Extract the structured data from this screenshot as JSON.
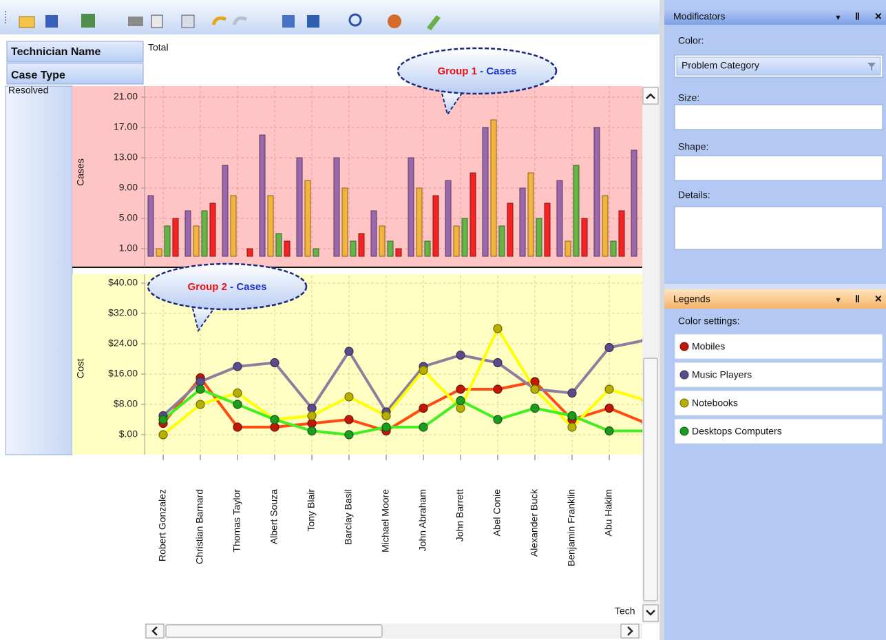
{
  "pivot": {
    "row_header": "Technician Name",
    "column_header": "Case Type",
    "total": "Total",
    "row": "Resolved",
    "axis_title": "Tech"
  },
  "charts": [
    {
      "type": "bar",
      "y_label": "Cases",
      "ylim": [
        0,
        22.5
      ],
      "yticks": [
        {
          "value": 1,
          "label": "1.00"
        },
        {
          "value": 5,
          "label": "5.00"
        },
        {
          "value": 9,
          "label": "9.00"
        },
        {
          "value": 13,
          "label": "13.00"
        },
        {
          "value": 17,
          "label": "17.00"
        },
        {
          "value": 21,
          "label": "21.00"
        }
      ],
      "grid": true,
      "series": [
        {
          "color": "#9b68ac",
          "values": [
            8,
            6,
            12,
            16,
            13,
            13,
            6,
            13,
            10,
            17,
            9,
            10,
            17,
            14
          ]
        },
        {
          "color": "#f2b43a",
          "values": [
            1,
            4,
            8,
            8,
            10,
            9,
            4,
            9,
            4,
            18,
            11,
            2,
            8,
            null
          ]
        },
        {
          "color": "#64b446",
          "values": [
            4,
            6,
            null,
            3,
            1,
            2,
            2,
            2,
            5,
            4,
            5,
            12,
            2,
            null
          ]
        },
        {
          "color": "#f42424",
          "values": [
            5,
            7,
            1,
            2,
            null,
            3,
            1,
            8,
            11,
            7,
            7,
            5,
            6,
            null
          ]
        }
      ]
    },
    {
      "type": "line",
      "y_label": "Cost",
      "categories": [
        "Robert Gonzalez",
        "Christian Barnard",
        "Thomas Taylor",
        "Albert Souza",
        "Tony Blair",
        "Barclay Basil",
        "Michael Moore",
        "John Abraham",
        "John Barrett",
        "Abel Conie",
        "Alexander Buck",
        "Benjamin Franklin",
        "Abu Hakim",
        null
      ],
      "ylim": [
        -5,
        42
      ],
      "yticks": [
        {
          "value": 0,
          "label": "$.00"
        },
        {
          "value": 8,
          "label": "$8.00"
        },
        {
          "value": 16,
          "label": "$16.00"
        },
        {
          "value": 24,
          "label": "$24.00"
        },
        {
          "value": 32,
          "label": "$32.00"
        },
        {
          "value": 40,
          "label": "$40.00"
        }
      ],
      "grid": true,
      "series": [
        {
          "name": "Mobiles",
          "color": "#ff4a10",
          "marker_color": "#c01808",
          "values": [
            3,
            15,
            2,
            2,
            3,
            4,
            1,
            7,
            12,
            12,
            14,
            4,
            7,
            3
          ]
        },
        {
          "name": "Music Players",
          "color": "#8e7e9e",
          "marker_color": "#5a4c8a",
          "values": [
            5,
            14,
            18,
            19,
            7,
            22,
            6,
            18,
            21,
            19,
            12,
            11,
            23,
            25
          ]
        },
        {
          "name": "Notebooks",
          "color": "#ffff00",
          "marker_color": "#b8b000",
          "values": [
            0,
            8,
            11,
            4,
            5,
            10,
            5,
            17,
            7,
            28,
            12,
            2,
            12,
            9
          ]
        },
        {
          "name": "Desktops Computers",
          "color": "#44ee22",
          "marker_color": "#1e9a1e",
          "values": [
            4,
            12,
            8,
            4,
            1,
            0,
            2,
            2,
            9,
            4,
            7,
            5,
            1,
            1
          ]
        }
      ]
    }
  ],
  "annotations": [
    {
      "part1": "Group 1",
      "part2": "- Cases"
    },
    {
      "part1": "Group 2",
      "part2": "- Cases"
    }
  ],
  "modificators": {
    "title": "Modificators",
    "color_label": "Color:",
    "color_value": "Problem Category",
    "size_label": "Size:",
    "shape_label": "Shape:",
    "details_label": "Details:"
  },
  "legends": {
    "title": "Legends",
    "subtitle": "Color settings:"
  }
}
